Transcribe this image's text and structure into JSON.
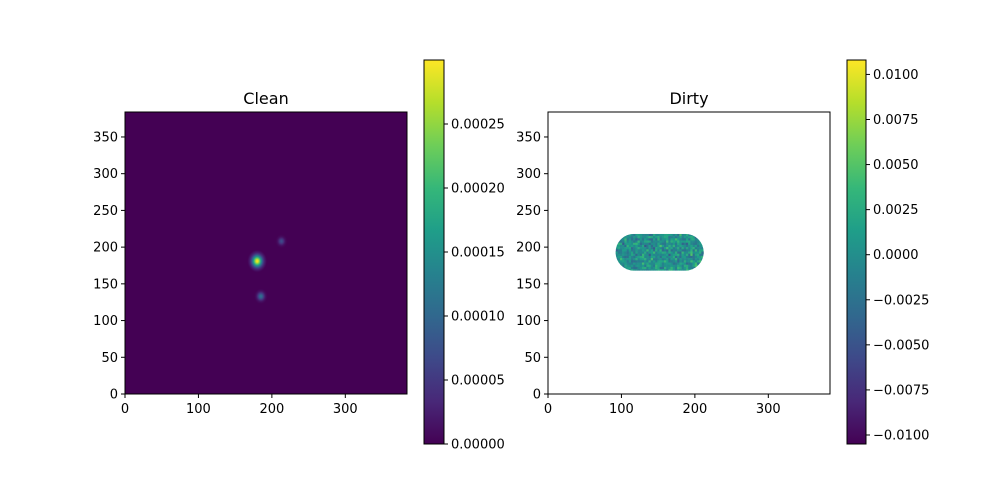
{
  "chart_data": [
    {
      "type": "heatmap",
      "title": "Clean",
      "xlim": [
        0,
        384
      ],
      "ylim": [
        0,
        384
      ],
      "xticks": [
        0,
        100,
        200,
        300
      ],
      "yticks": [
        0,
        50,
        100,
        150,
        200,
        250,
        300,
        350
      ],
      "colormap": "viridis",
      "colorbar": {
        "range": [
          0,
          0.0003
        ],
        "ticks": [
          0,
          5e-05,
          0.0001,
          0.00015,
          0.0002,
          0.00025
        ],
        "tick_labels": [
          "0.00000",
          "0.00005",
          "0.00010",
          "0.00015",
          "0.00020",
          "0.00025"
        ]
      },
      "sources": [
        {
          "x": 180,
          "y": 181,
          "peak": 0.0003
        },
        {
          "x": 185,
          "y": 133,
          "peak": 0.00011
        },
        {
          "x": 213,
          "y": 208,
          "peak": 7e-05
        }
      ]
    },
    {
      "type": "heatmap",
      "title": "Dirty",
      "xlim": [
        0,
        384
      ],
      "ylim": [
        0,
        384
      ],
      "xticks": [
        0,
        100,
        200,
        300
      ],
      "yticks": [
        0,
        50,
        100,
        150,
        200,
        250,
        300,
        350
      ],
      "colormap": "viridis",
      "background": "#ffffff",
      "colorbar": {
        "range": [
          -0.0105,
          0.0108
        ],
        "ticks": [
          -0.01,
          -0.0075,
          -0.005,
          -0.0025,
          0,
          0.0025,
          0.005,
          0.0075,
          0.01
        ],
        "tick_labels": [
          "−0.0100",
          "−0.0075",
          "−0.0050",
          "−0.0025",
          "0.0000",
          "0.0025",
          "0.0050",
          "0.0075",
          "0.0100"
        ]
      },
      "noise_region": {
        "shape": "stadium",
        "x_range": [
          92,
          212
        ],
        "y_range": [
          168,
          218
        ]
      }
    }
  ]
}
